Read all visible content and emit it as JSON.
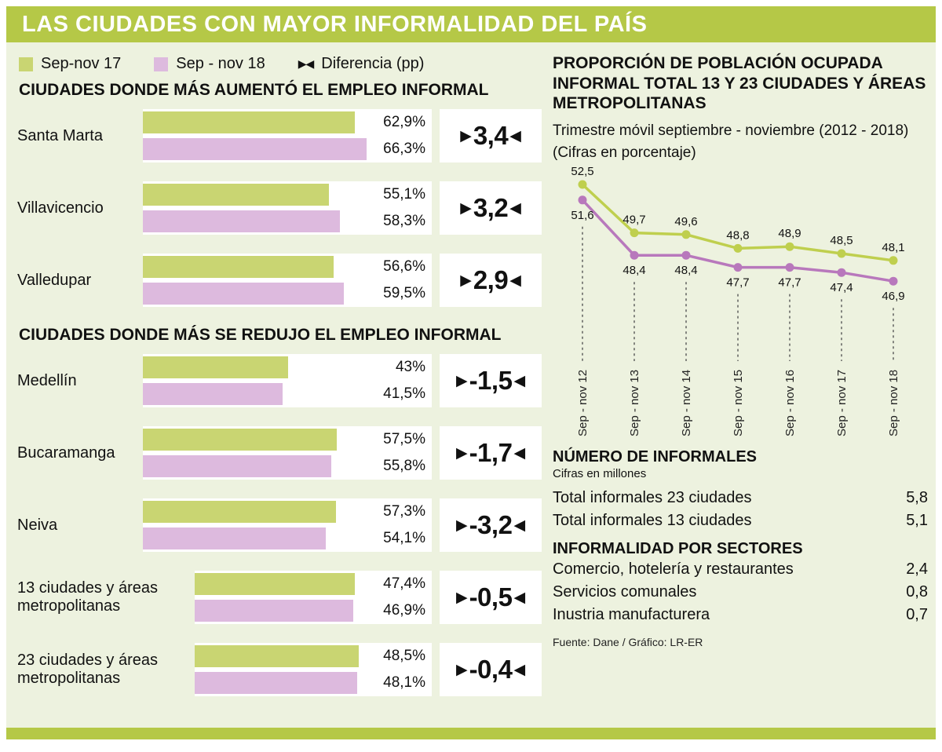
{
  "header": {
    "title": "LAS CIUDADES CON MAYOR INFORMALIDAD DEL PAÍS"
  },
  "legend": {
    "sep17": "Sep-nov 17",
    "sep18": "Sep - nov 18",
    "diff": "Diferencia (pp)"
  },
  "colors": {
    "header_green": "#b5c847",
    "background": "#edf2df",
    "bar_green": "#c9d572",
    "bar_purple": "#ddbade",
    "line_green": "#bfcf4e",
    "line_purple": "#b878bc",
    "box_white": "#ffffff"
  },
  "chart_data": [
    {
      "id": "increase",
      "type": "bar",
      "title": "CIUDADES DONDE MÁS AUMENTÓ EL EMPLEO INFORMAL",
      "categories": [
        "Santa Marta",
        "Villavicencio",
        "Valledupar"
      ],
      "wide_label": [
        false,
        false,
        false
      ],
      "series": [
        {
          "name": "Sep-nov 17",
          "color": "#c9d572",
          "values": [
            62.9,
            55.1,
            56.6
          ],
          "labels": [
            "62,9%",
            "55,1%",
            "56,6%"
          ]
        },
        {
          "name": "Sep - nov 18",
          "color": "#ddbade",
          "values": [
            66.3,
            58.3,
            59.5
          ],
          "labels": [
            "66,3%",
            "58,3%",
            "59,5%"
          ]
        }
      ],
      "diff_pp": [
        3.4,
        3.2,
        2.9
      ],
      "diff_labels": [
        "3,4",
        "3,2",
        "2,9"
      ],
      "xlim": [
        0,
        85
      ],
      "unit": "%"
    },
    {
      "id": "decrease",
      "type": "bar",
      "title": "CIUDADES DONDE MÁS SE REDUJO EL EMPLEO INFORMAL",
      "categories": [
        "Medellín",
        "Bucaramanga",
        "Neiva",
        "13 ciudades y áreas metropolitanas",
        "23 ciudades y áreas metropolitanas"
      ],
      "wide_label": [
        false,
        false,
        false,
        true,
        true
      ],
      "series": [
        {
          "name": "Sep-nov 17",
          "color": "#c9d572",
          "values": [
            43,
            57.5,
            57.3,
            47.4,
            48.5
          ],
          "labels": [
            "43%",
            "57,5%",
            "57,3%",
            "47,4%",
            "48,5%"
          ]
        },
        {
          "name": "Sep - nov 18",
          "color": "#ddbade",
          "values": [
            41.5,
            55.8,
            54.1,
            46.9,
            48.1
          ],
          "labels": [
            "41,5%",
            "55,8%",
            "54,1%",
            "46,9%",
            "48,1%"
          ]
        }
      ],
      "diff_pp": [
        -1.5,
        -1.7,
        -3.2,
        -0.5,
        -0.4
      ],
      "diff_labels": [
        "-1,5",
        "-1,7",
        "-3,2",
        "-0,5",
        "-0,4"
      ],
      "xlim": [
        0,
        85
      ],
      "unit": "%"
    },
    {
      "id": "trend",
      "type": "line",
      "title": "PROPORCIÓN DE POBLACIÓN OCUPADA INFORMAL TOTAL 13 Y 23 CIUDADES Y ÁREAS METROPOLITANAS",
      "subtitle": "Trimestre móvil septiembre - noviembre (2012 - 2018)",
      "subtitle2": "(Cifras en porcentaje)",
      "x": [
        "Sep - nov 12",
        "Sep - nov 13",
        "Sep - nov 14",
        "Sep - nov 15",
        "Sep - nov 16",
        "Sep - nov 17",
        "Sep - nov 18"
      ],
      "series": [
        {
          "name": "green-line",
          "color": "#bfcf4e",
          "values": [
            52.5,
            49.7,
            49.6,
            48.8,
            48.9,
            48.5,
            48.1
          ],
          "labels": [
            "52,5",
            "49,7",
            "49,6",
            "48,8",
            "48,9",
            "48,5",
            "48,1"
          ]
        },
        {
          "name": "purple-line",
          "color": "#b878bc",
          "values": [
            51.6,
            48.4,
            48.4,
            47.7,
            47.7,
            47.4,
            46.9
          ],
          "labels": [
            "51,6",
            "48,4",
            "48,4",
            "47,7",
            "47,7",
            "47,4",
            "46,9"
          ]
        }
      ],
      "ylim": [
        46,
        53
      ],
      "grid": "dashed-vertical",
      "legend_position": "none"
    }
  ],
  "informales": {
    "title": "NÚMERO DE INFORMALES",
    "subtitle": "Cifras en millones",
    "rows": [
      {
        "label": "Total informales 23 ciudades",
        "value": "5,8"
      },
      {
        "label": "Total informales 13 ciudades",
        "value": "5,1"
      }
    ]
  },
  "sectores": {
    "title": "INFORMALIDAD POR SECTORES",
    "rows": [
      {
        "label": "Comercio, hotelería y restaurantes",
        "value": "2,4"
      },
      {
        "label": "Servicios comunales",
        "value": "0,8"
      },
      {
        "label": "Inustria manufacturera",
        "value": "0,7"
      }
    ]
  },
  "source": "Fuente: Dane / Gráfico: LR-ER"
}
